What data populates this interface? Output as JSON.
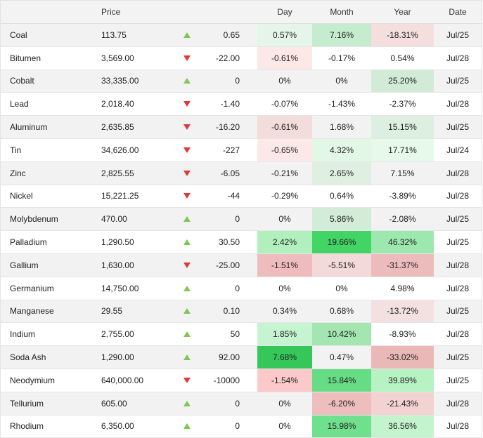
{
  "headers": {
    "name": "",
    "price": "Price",
    "change": "",
    "day": "Day",
    "month": "Month",
    "year": "Year",
    "date": "Date"
  },
  "colors": {
    "up_arrow": "#7ec850",
    "down_arrow": "#e0393a"
  },
  "rows": [
    {
      "name": "Coal",
      "price": "113.75",
      "dir": "up",
      "change": "0.65",
      "day": "0.57%",
      "month": "7.16%",
      "year": "-18.31%",
      "date": "Jul/25",
      "day_bg": "#e6f5e9",
      "month_bg": "#c5ecce",
      "year_bg": "#f5dede"
    },
    {
      "name": "Bitumen",
      "price": "3,569.00",
      "dir": "down",
      "change": "-22.00",
      "day": "-0.61%",
      "month": "-0.17%",
      "year": "0.54%",
      "date": "Jul/28",
      "day_bg": "#fde8e8",
      "month_bg": "",
      "year_bg": ""
    },
    {
      "name": "Cobalt",
      "price": "33,335.00",
      "dir": "up",
      "change": "0",
      "day": "0%",
      "month": "0%",
      "year": "25.20%",
      "date": "Jul/25",
      "day_bg": "",
      "month_bg": "",
      "year_bg": "#d1ebd7"
    },
    {
      "name": "Lead",
      "price": "2,018.40",
      "dir": "down",
      "change": "-1.40",
      "day": "-0.07%",
      "month": "-1.43%",
      "year": "-2.37%",
      "date": "Jul/28",
      "day_bg": "",
      "month_bg": "",
      "year_bg": ""
    },
    {
      "name": "Aluminum",
      "price": "2,635.85",
      "dir": "down",
      "change": "-16.20",
      "day": "-0.61%",
      "month": "1.68%",
      "year": "15.15%",
      "date": "Jul/25",
      "day_bg": "#f2dcdc",
      "month_bg": "",
      "year_bg": "#dcefe0"
    },
    {
      "name": "Tin",
      "price": "34,626.00",
      "dir": "down",
      "change": "-227",
      "day": "-0.65%",
      "month": "4.32%",
      "year": "17.71%",
      "date": "Jul/24",
      "day_bg": "#fde8e8",
      "month_bg": "#e3f7e6",
      "year_bg": "#e6f9ea"
    },
    {
      "name": "Zinc",
      "price": "2,825.55",
      "dir": "down",
      "change": "-6.05",
      "day": "-0.21%",
      "month": "2.65%",
      "year": "7.15%",
      "date": "Jul/28",
      "day_bg": "",
      "month_bg": "#dff0e2",
      "year_bg": ""
    },
    {
      "name": "Nickel",
      "price": "15,221.25",
      "dir": "down",
      "change": "-44",
      "day": "-0.29%",
      "month": "0.64%",
      "year": "-3.89%",
      "date": "Jul/28",
      "day_bg": "",
      "month_bg": "",
      "year_bg": ""
    },
    {
      "name": "Molybdenum",
      "price": "470.00",
      "dir": "up",
      "change": "0",
      "day": "0%",
      "month": "5.86%",
      "year": "-2.08%",
      "date": "Jul/25",
      "day_bg": "",
      "month_bg": "#d3ecd8",
      "year_bg": ""
    },
    {
      "name": "Palladium",
      "price": "1,290.50",
      "dir": "up",
      "change": "30.50",
      "day": "2.42%",
      "month": "19.66%",
      "year": "46.32%",
      "date": "Jul/25",
      "day_bg": "#b1f0bd",
      "month_bg": "#43d466",
      "year_bg": "#9de8ae"
    },
    {
      "name": "Gallium",
      "price": "1,630.00",
      "dir": "down",
      "change": "-25.00",
      "day": "-1.51%",
      "month": "-5.51%",
      "year": "-31.37%",
      "date": "Jul/28",
      "day_bg": "#eebcbc",
      "month_bg": "#f3d9d9",
      "year_bg": "#ecbcbc"
    },
    {
      "name": "Germanium",
      "price": "14,750.00",
      "dir": "up",
      "change": "0",
      "day": "0%",
      "month": "0%",
      "year": "4.98%",
      "date": "Jul/28",
      "day_bg": "",
      "month_bg": "",
      "year_bg": ""
    },
    {
      "name": "Manganese",
      "price": "29.55",
      "dir": "up",
      "change": "0.10",
      "day": "0.34%",
      "month": "0.68%",
      "year": "-13.72%",
      "date": "Jul/25",
      "day_bg": "",
      "month_bg": "",
      "year_bg": "#f3e0e0"
    },
    {
      "name": "Indium",
      "price": "2,755.00",
      "dir": "up",
      "change": "50",
      "day": "1.85%",
      "month": "10.42%",
      "year": "-8.93%",
      "date": "Jul/28",
      "day_bg": "#c6f4d0",
      "month_bg": "#a3e6b1",
      "year_bg": ""
    },
    {
      "name": "Soda Ash",
      "price": "1,290.00",
      "dir": "up",
      "change": "92.00",
      "day": "7.68%",
      "month": "0.47%",
      "year": "-33.02%",
      "date": "Jul/25",
      "day_bg": "#36c75a",
      "month_bg": "",
      "year_bg": "#ebb8b8"
    },
    {
      "name": "Neodymium",
      "price": "640,000.00",
      "dir": "down",
      "change": "-10000",
      "day": "-1.54%",
      "month": "15.84%",
      "year": "39.89%",
      "date": "Jul/25",
      "day_bg": "#fbc9c9",
      "month_bg": "#66dd85",
      "year_bg": "#b6f2c2"
    },
    {
      "name": "Tellurium",
      "price": "605.00",
      "dir": "up",
      "change": "0",
      "day": "0%",
      "month": "-6.20%",
      "year": "-21.43%",
      "date": "Jul/28",
      "day_bg": "",
      "month_bg": "#eebebe",
      "year_bg": "#f3d2d2"
    },
    {
      "name": "Rhodium",
      "price": "6,350.00",
      "dir": "up",
      "change": "0",
      "day": "0%",
      "month": "15.98%",
      "year": "36.56%",
      "date": "Jul/28",
      "day_bg": "",
      "month_bg": "#6fe08d",
      "year_bg": "#c3f4cd"
    }
  ]
}
